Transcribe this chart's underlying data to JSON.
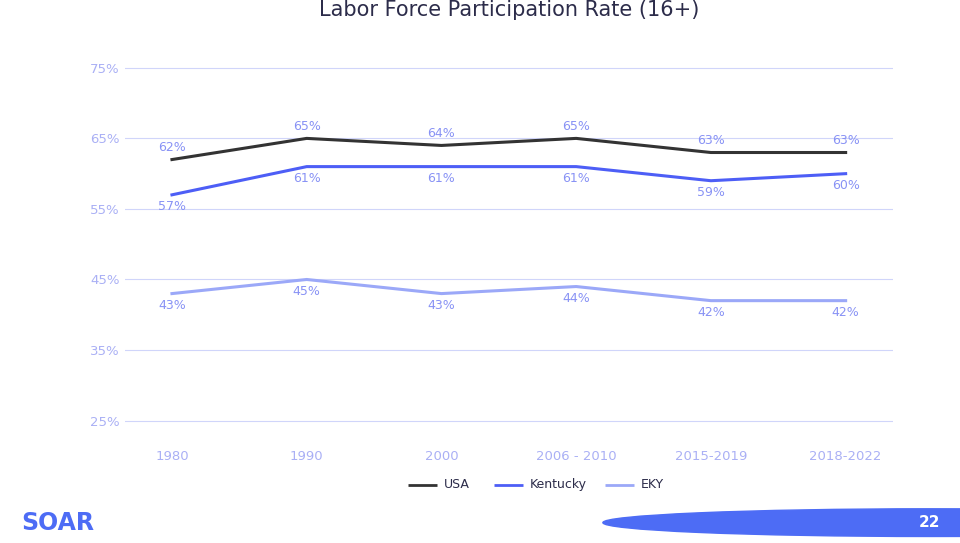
{
  "title": "Labor Force Participation Rate (16+)",
  "x_labels": [
    "1980",
    "1990",
    "2000",
    "2006 - 2010",
    "2015-2019",
    "2018-2022"
  ],
  "x_positions": [
    0,
    1,
    2,
    3,
    4,
    5
  ],
  "usa_values": [
    0.62,
    0.65,
    0.64,
    0.65,
    0.63,
    0.63
  ],
  "kentucky_values": [
    0.57,
    0.61,
    0.61,
    0.61,
    0.59,
    0.6
  ],
  "eky_values": [
    0.43,
    0.45,
    0.43,
    0.44,
    0.42,
    0.42
  ],
  "usa_color": "#333333",
  "kentucky_color": "#4d5ef6",
  "eky_color": "#9ba8f8",
  "label_color": "#8892f5",
  "axis_color": "#aab0f5",
  "grid_color": "#d0d5fa",
  "title_color": "#2c2c4a",
  "bg_color": "#ffffff",
  "footer_bg": "#3d3d3d",
  "footer_text": "SOAR",
  "footer_num": "22",
  "yticks": [
    0.25,
    0.35,
    0.45,
    0.55,
    0.65,
    0.75
  ],
  "ylim": [
    0.215,
    0.8
  ],
  "line_width": 2.2,
  "label_fontsize": 9,
  "title_fontsize": 15,
  "tick_fontsize": 9.5,
  "legend_fontsize": 9
}
